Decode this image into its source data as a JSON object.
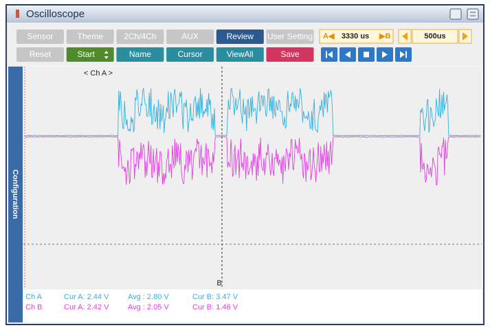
{
  "window": {
    "title": "Oscilloscope"
  },
  "toolbar": {
    "row1": [
      "Sensor",
      "Theme",
      "2Ch/4Ch",
      "AUX",
      "Review",
      "User Setting"
    ],
    "row2": [
      "Reset",
      "Start",
      "Name",
      "Cursor",
      "ViewAll",
      "Save"
    ],
    "cursor_a_label": "A◀",
    "cursor_value": "3330 us",
    "cursor_b_label": "▶B",
    "time_div": "500us"
  },
  "sidebar": {
    "label": "Configuration"
  },
  "plot": {
    "channel_label": "< Ch A >",
    "cursor_b": "B"
  },
  "status": {
    "rows": [
      [
        "Ch A",
        "Cur A: 2.44 V",
        "Avg : 2.80 V",
        "Cur B: 3.47 V"
      ],
      [
        "Ch B",
        "Cur A: 2.42 V",
        "Avg : 2.05 V",
        "Cur B: 1.46 V"
      ]
    ]
  }
}
